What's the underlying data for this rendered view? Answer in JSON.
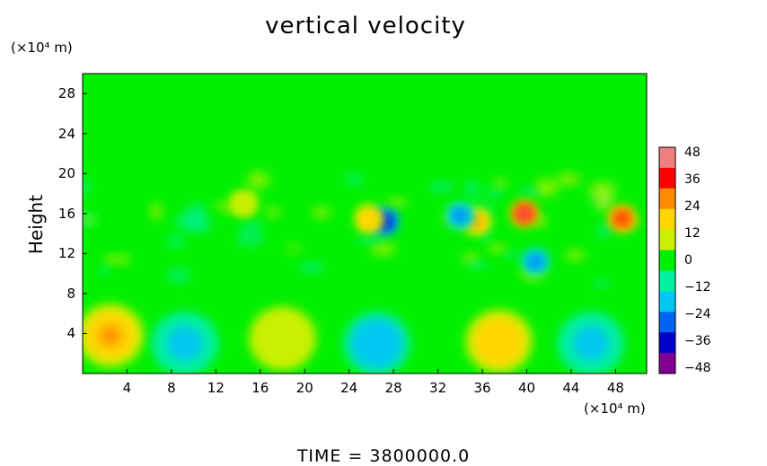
{
  "chart_data": {
    "type": "heatmap",
    "title": "vertical velocity",
    "ylabel": "Height",
    "y_unit": "(×10⁴ m)",
    "x_unit": "(×10⁴ m)",
    "footer": "TIME  =  3800000.0",
    "x_ticks": [
      4,
      8,
      12,
      16,
      20,
      24,
      28,
      32,
      36,
      40,
      44,
      48
    ],
    "y_ticks": [
      4,
      8,
      12,
      16,
      20,
      24,
      28
    ],
    "xlim": [
      0,
      50.8
    ],
    "ylim": [
      0,
      30
    ],
    "colorbar": {
      "ticks": [
        48,
        36,
        24,
        12,
        0,
        -12,
        -24,
        -36,
        -48
      ],
      "range": [
        -48,
        48
      ],
      "colors": [
        "#f08080",
        "#ff0000",
        "#ff8c00",
        "#ffd700",
        "#c8f000",
        "#00f000",
        "#00f0a0",
        "#00c8f0",
        "#0064f0",
        "#0000c8",
        "#800090"
      ]
    },
    "features": [
      {
        "x": 2.5,
        "y": 3.8,
        "value": 26
      },
      {
        "x": 9.2,
        "y": 3.0,
        "value": -20
      },
      {
        "x": 18.0,
        "y": 3.5,
        "value": 10
      },
      {
        "x": 26.5,
        "y": 3.0,
        "value": -22
      },
      {
        "x": 37.5,
        "y": 3.2,
        "value": 24
      },
      {
        "x": 45.8,
        "y": 3.0,
        "value": -20
      },
      {
        "x": 39.8,
        "y": 16.0,
        "value": 44
      },
      {
        "x": 48.6,
        "y": 15.5,
        "value": 36
      },
      {
        "x": 35.5,
        "y": 15.2,
        "value": 26
      },
      {
        "x": 27.2,
        "y": 15.2,
        "value": -36
      },
      {
        "x": 34.0,
        "y": 15.8,
        "value": -26
      },
      {
        "x": 40.8,
        "y": 11.2,
        "value": -24
      },
      {
        "x": 25.8,
        "y": 15.4,
        "value": 22
      },
      {
        "x": 14.5,
        "y": 17.0,
        "value": 12
      }
    ]
  }
}
